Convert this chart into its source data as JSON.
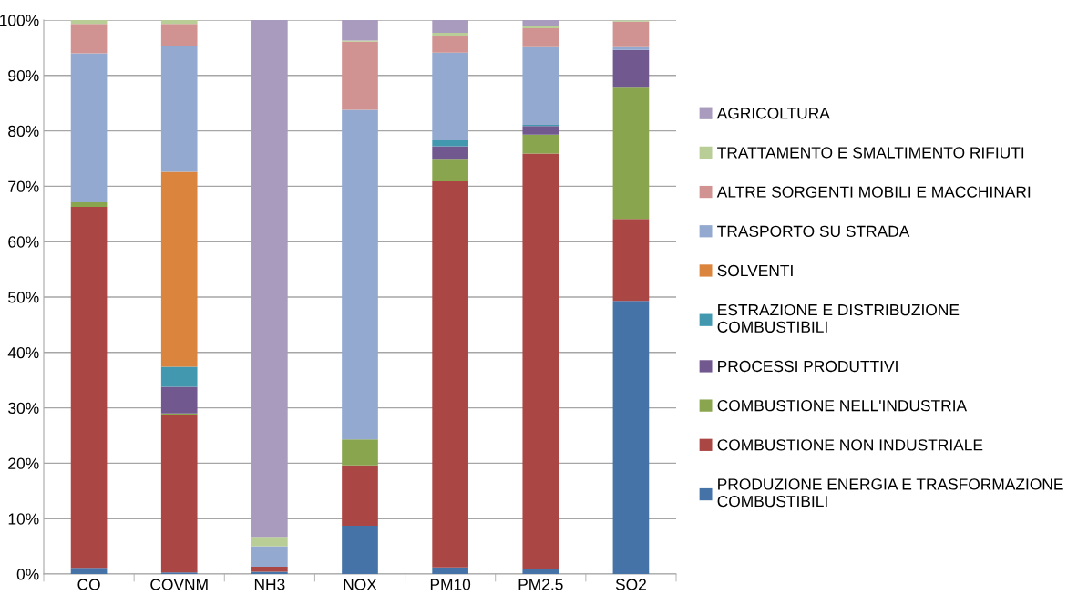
{
  "chart_data": {
    "type": "bar",
    "stacked": true,
    "categories": [
      "CO",
      "COVNM",
      "NH3",
      "NOX",
      "PM10",
      "PM2.5",
      "SO2"
    ],
    "ylim": [
      0,
      100
    ],
    "yticks": [
      {
        "value": 0,
        "label": "0%"
      },
      {
        "value": 10,
        "label": "10%"
      },
      {
        "value": 20,
        "label": "20%"
      },
      {
        "value": 30,
        "label": "30%"
      },
      {
        "value": 40,
        "label": "40%"
      },
      {
        "value": 50,
        "label": "50%"
      },
      {
        "value": 60,
        "label": "60%"
      },
      {
        "value": 70,
        "label": "70%"
      },
      {
        "value": 80,
        "label": "80%"
      },
      {
        "value": 90,
        "label": "90%"
      },
      {
        "value": 100,
        "label": "100%"
      }
    ],
    "grid": "y",
    "legend": "right",
    "series": [
      {
        "name": "PRODUZIONE ENERGIA E TRASFORMAZIONE\nCOMBUSTIBILI",
        "color": "#4572a7",
        "values": [
          1.1,
          0.3,
          0.4,
          8.7,
          1.2,
          0.9,
          49.3
        ]
      },
      {
        "name": "COMBUSTIONE NON INDUSTRIALE",
        "color": "#aa4643",
        "values": [
          65.2,
          28.4,
          0.9,
          10.9,
          69.7,
          75.0,
          14.8
        ]
      },
      {
        "name": "COMBUSTIONE NELL'INDUSTRIA",
        "color": "#89a54e",
        "values": [
          0.8,
          0.3,
          0,
          4.7,
          3.9,
          3.4,
          23.7
        ]
      },
      {
        "name": "PROCESSI PRODUTTIVI",
        "color": "#71588f",
        "values": [
          0,
          4.8,
          0,
          0,
          2.4,
          1.6,
          6.8
        ]
      },
      {
        "name": "ESTRAZIONE E DISTRIBUZIONE\nCOMBUSTIBILI",
        "color": "#4198af",
        "values": [
          0,
          3.6,
          0,
          0,
          1.1,
          0.2,
          0
        ]
      },
      {
        "name": "SOLVENTI",
        "color": "#db843d",
        "values": [
          0,
          35.2,
          0,
          0,
          0,
          0,
          0
        ]
      },
      {
        "name": "TRASPORTO SU STRADA",
        "color": "#93a9cf",
        "values": [
          26.9,
          22.8,
          3.7,
          59.5,
          15.8,
          14.0,
          0.5
        ]
      },
      {
        "name": "ALTRE SORGENTI MOBILI E MACCHINARI",
        "color": "#d19392",
        "values": [
          5.3,
          3.9,
          0,
          12.3,
          3.1,
          3.4,
          4.6
        ]
      },
      {
        "name": "TRATTAMENTO E SMALTIMENTO RIFIUTI",
        "color": "#b9cd96",
        "values": [
          0.7,
          0.7,
          1.7,
          0.2,
          0.5,
          0.4,
          0.2
        ]
      },
      {
        "name": "AGRICOLTURA",
        "color": "#a99bbd",
        "values": [
          0,
          0,
          93.3,
          3.7,
          2.3,
          1.1,
          0
        ]
      }
    ]
  }
}
